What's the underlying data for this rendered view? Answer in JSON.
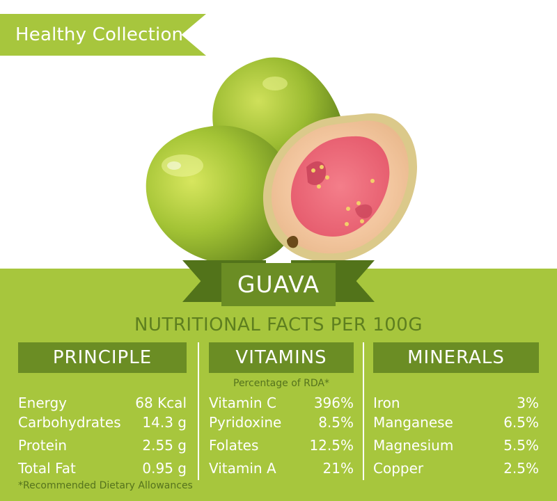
{
  "banner": {
    "label": "Healthy Collection"
  },
  "product": {
    "name": "GUAVA"
  },
  "subtitle": "NUTRITIONAL FACTS PER 100G",
  "columns": {
    "principle": {
      "header": "PRINCIPLE",
      "rows": [
        {
          "label": "Energy",
          "value": "68 Kcal"
        },
        {
          "label": "Carbohydrates",
          "value": "14.3 g"
        },
        {
          "label": "Protein",
          "value": "2.55 g"
        },
        {
          "label": "Total Fat",
          "value": "0.95 g"
        }
      ]
    },
    "vitamins": {
      "header": "VITAMINS",
      "note": "Percentage of RDA*",
      "rows": [
        {
          "label": "Vitamin C",
          "value": "396%"
        },
        {
          "label": "Pyridoxine",
          "value": "8.5%"
        },
        {
          "label": "Folates",
          "value": "12.5%"
        },
        {
          "label": "Vitamin A",
          "value": "21%"
        }
      ]
    },
    "minerals": {
      "header": "MINERALS",
      "rows": [
        {
          "label": "Iron",
          "value": "3%"
        },
        {
          "label": "Manganese",
          "value": "6.5%"
        },
        {
          "label": "Magnesium",
          "value": "5.5%"
        },
        {
          "label": "Copper",
          "value": "2.5%"
        }
      ]
    }
  },
  "footnote": "*Recommended Dietary Allowances",
  "colors": {
    "panel_green": "#a7c63d",
    "dark_green": "#6b8d24",
    "text_green": "#5e7f1f",
    "guava_flesh": "#ef6b7a",
    "guava_skin": "#8fae2b"
  }
}
